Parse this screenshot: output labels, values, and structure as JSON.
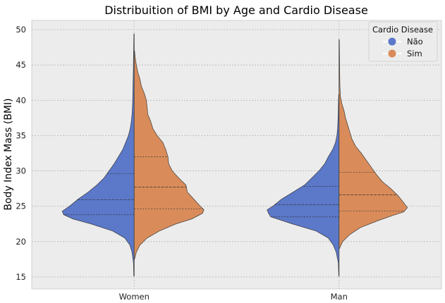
{
  "chart_data": {
    "type": "violin",
    "title": "Distribuition of BMI by Age and Cardio Disease",
    "xlabel": "",
    "ylabel": "Body Index Mass (BMI)",
    "categories": [
      "Women",
      "Man"
    ],
    "ylim": [
      13.3,
      51.3
    ],
    "yticks": [
      "15",
      "20",
      "25",
      "30",
      "35",
      "40",
      "45",
      "50"
    ],
    "grid": true,
    "split": true,
    "legend": {
      "title": "Cardio Disease",
      "position": "top-right",
      "entries": [
        "Não",
        "Sim"
      ]
    },
    "colors": {
      "Não": "#5b78c9",
      "Sim": "#d98c5a",
      "background": "#ececec"
    },
    "series": [
      {
        "name": "Não",
        "groups": [
          {
            "category": "Women",
            "min": 15.1,
            "max": 49.4,
            "quartiles": [
              23.8,
              25.9,
              29.6
            ],
            "density": [
              [
                15.1,
                0.5
              ],
              [
                17,
                1
              ],
              [
                18.5,
                3
              ],
              [
                19.5,
                6
              ],
              [
                20.5,
                13
              ],
              [
                21.5,
                30
              ],
              [
                22.5,
                60
              ],
              [
                23.2,
                85
              ],
              [
                23.8,
                98
              ],
              [
                24.3,
                100
              ],
              [
                25,
                90
              ],
              [
                26,
                78
              ],
              [
                27,
                64
              ],
              [
                28,
                52
              ],
              [
                29,
                42
              ],
              [
                30,
                35
              ],
              [
                31,
                28
              ],
              [
                32,
                22
              ],
              [
                33,
                16
              ],
              [
                34,
                12
              ],
              [
                35,
                8
              ],
              [
                36,
                5.5
              ],
              [
                37,
                4
              ],
              [
                38,
                3
              ],
              [
                39,
                2.4
              ],
              [
                40,
                2
              ],
              [
                42,
                1.6
              ],
              [
                44,
                1.2
              ],
              [
                46,
                0.9
              ],
              [
                48,
                0.6
              ],
              [
                49.4,
                0.4
              ]
            ]
          },
          {
            "category": "Man",
            "min": 15.1,
            "max": 40.8,
            "quartiles": [
              23.5,
              25.2,
              27.8
            ],
            "density": [
              [
                15.1,
                0.4
              ],
              [
                17,
                1
              ],
              [
                18.5,
                4
              ],
              [
                19.5,
                8
              ],
              [
                20.5,
                15
              ],
              [
                21.5,
                32
              ],
              [
                22.5,
                65
              ],
              [
                23.5,
                95
              ],
              [
                24,
                98
              ],
              [
                24.5,
                100
              ],
              [
                25,
                92
              ],
              [
                26,
                80
              ],
              [
                27,
                64
              ],
              [
                28,
                48
              ],
              [
                29,
                38
              ],
              [
                30,
                28
              ],
              [
                31,
                20
              ],
              [
                32,
                15
              ],
              [
                33,
                9
              ],
              [
                34,
                5
              ],
              [
                35,
                3
              ],
              [
                36,
                2
              ],
              [
                38,
                1.2
              ],
              [
                39.5,
                0.9
              ],
              [
                40.8,
                0.5
              ]
            ]
          }
        ]
      },
      {
        "name": "Sim",
        "groups": [
          {
            "category": "Women",
            "min": 17.5,
            "max": 47.0,
            "quartiles": [
              24.6,
              27.7,
              32.0
            ],
            "density": [
              [
                17.5,
                0.5
              ],
              [
                18.5,
                3
              ],
              [
                19.5,
                8
              ],
              [
                20.5,
                18
              ],
              [
                21.5,
                35
              ],
              [
                22.5,
                58
              ],
              [
                23.2,
                80
              ],
              [
                24,
                95
              ],
              [
                24.5,
                97
              ],
              [
                25,
                92
              ],
              [
                26,
                83
              ],
              [
                27,
                74
              ],
              [
                28,
                72
              ],
              [
                29,
                62
              ],
              [
                30,
                53
              ],
              [
                31,
                48
              ],
              [
                32,
                47
              ],
              [
                33,
                44
              ],
              [
                34,
                40
              ],
              [
                35,
                32
              ],
              [
                36,
                26
              ],
              [
                37,
                23
              ],
              [
                38,
                19
              ],
              [
                39,
                18
              ],
              [
                40,
                17
              ],
              [
                41,
                14
              ],
              [
                42,
                10
              ],
              [
                43,
                8
              ],
              [
                44,
                5
              ],
              [
                45,
                3
              ],
              [
                46,
                1.5
              ],
              [
                47,
                0.5
              ]
            ]
          },
          {
            "category": "Man",
            "min": 19.0,
            "max": 48.6,
            "quartiles": [
              24.3,
              26.6,
              29.8
            ],
            "density": [
              [
                19,
                0.5
              ],
              [
                20,
                5
              ],
              [
                21,
                15
              ],
              [
                22,
                30
              ],
              [
                23,
                55
              ],
              [
                23.7,
                75
              ],
              [
                24.2,
                90
              ],
              [
                24.8,
                95
              ],
              [
                25.5,
                90
              ],
              [
                26.5,
                82
              ],
              [
                27.5,
                72
              ],
              [
                28.5,
                60
              ],
              [
                29.5,
                52
              ],
              [
                30.5,
                45
              ],
              [
                31.5,
                38
              ],
              [
                32.5,
                31
              ],
              [
                33.5,
                23
              ],
              [
                34.5,
                18
              ],
              [
                35.5,
                15
              ],
              [
                36.5,
                12
              ],
              [
                37.5,
                9
              ],
              [
                38.5,
                7
              ],
              [
                39.5,
                4
              ],
              [
                40.5,
                2
              ],
              [
                42,
                1.2
              ],
              [
                44,
                0.9
              ],
              [
                46,
                0.7
              ],
              [
                48.6,
                0.4
              ]
            ]
          }
        ]
      }
    ]
  }
}
